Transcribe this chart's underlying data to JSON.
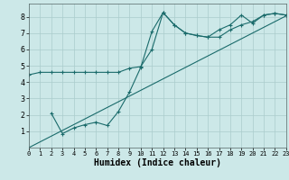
{
  "xlabel": "Humidex (Indice chaleur)",
  "background_color": "#cce8e8",
  "grid_color": "#aacccc",
  "line_color": "#1a6b6b",
  "xlim": [
    0,
    23
  ],
  "ylim": [
    0,
    8.8
  ],
  "xticks": [
    0,
    1,
    2,
    3,
    4,
    5,
    6,
    7,
    8,
    9,
    10,
    11,
    12,
    13,
    14,
    15,
    16,
    17,
    18,
    19,
    20,
    21,
    22,
    23
  ],
  "yticks": [
    1,
    2,
    3,
    4,
    5,
    6,
    7,
    8
  ],
  "line1_x": [
    0,
    1,
    2,
    3,
    4,
    5,
    6,
    7,
    8,
    9,
    10,
    11,
    12,
    13,
    14,
    15,
    16,
    17,
    18,
    19,
    20,
    21,
    22,
    23
  ],
  "line1_y": [
    4.45,
    4.6,
    4.6,
    4.6,
    4.6,
    4.6,
    4.6,
    4.6,
    4.6,
    4.85,
    4.95,
    6.0,
    8.25,
    7.5,
    7.0,
    6.85,
    6.75,
    7.2,
    7.5,
    8.1,
    7.6,
    8.1,
    8.2,
    8.1
  ],
  "line2_x": [
    2,
    3,
    4,
    5,
    6,
    7,
    8,
    9,
    10,
    11,
    12,
    13,
    14,
    15,
    16,
    17,
    18,
    19,
    20,
    21,
    22,
    23
  ],
  "line2_y": [
    2.1,
    0.85,
    1.2,
    1.4,
    1.55,
    1.35,
    2.2,
    3.4,
    4.9,
    7.1,
    8.25,
    7.5,
    7.0,
    6.85,
    6.75,
    6.75,
    7.2,
    7.5,
    7.7,
    8.1,
    8.2,
    8.1
  ],
  "line3_x": [
    0,
    23
  ],
  "line3_y": [
    0.0,
    8.05
  ]
}
